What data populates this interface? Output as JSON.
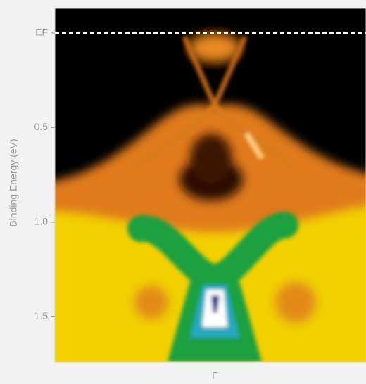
{
  "chart_data": {
    "type": "intensity-map",
    "ylabel": "Binding Energy (eV)",
    "xlabel": "Γ",
    "ylim": [
      -0.13,
      1.74
    ],
    "y_inverted": true,
    "yticks": [
      {
        "value": 0,
        "label": "EF"
      },
      0.5,
      {
        "value": 1,
        "label": "1.0"
      },
      1.5
    ],
    "fermi_level_line": true
  }
}
